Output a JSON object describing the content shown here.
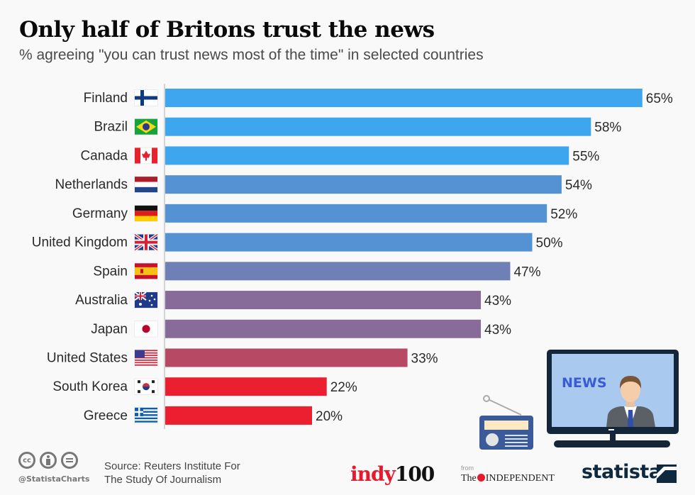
{
  "header": {
    "title": "Only half of Britons trust the news",
    "subtitle": "% agreeing \"you can trust news most of the time\" in selected countries"
  },
  "chart_data": {
    "type": "bar",
    "orientation": "horizontal",
    "title": "Only half of Britons trust the news",
    "subtitle": "% agreeing \"you can trust news most of the time\" in selected countries",
    "xlabel": "",
    "ylabel": "",
    "unit": "%",
    "xlim": [
      0,
      65
    ],
    "grid": false,
    "categories": [
      "Finland",
      "Brazil",
      "Canada",
      "Netherlands",
      "Germany",
      "United Kingdom",
      "Spain",
      "Australia",
      "Japan",
      "United States",
      "South Korea",
      "Greece"
    ],
    "values": [
      65,
      58,
      55,
      54,
      52,
      50,
      47,
      43,
      43,
      33,
      22,
      20
    ],
    "labels": [
      "65%",
      "58%",
      "55%",
      "54%",
      "52%",
      "50%",
      "47%",
      "43%",
      "43%",
      "33%",
      "22%",
      "20%"
    ],
    "colors": [
      "#3ea6ee",
      "#3ea6ee",
      "#3ea6ee",
      "#5592d4",
      "#5592d4",
      "#5592d4",
      "#6e80b6",
      "#876c9a",
      "#876c9a",
      "#b84965",
      "#ec1f30",
      "#ec1f30"
    ],
    "flags": [
      "finland-flag-icon",
      "brazil-flag-icon",
      "canada-flag-icon",
      "netherlands-flag-icon",
      "germany-flag-icon",
      "uk-flag-icon",
      "spain-flag-icon",
      "australia-flag-icon",
      "japan-flag-icon",
      "usa-flag-icon",
      "south-korea-flag-icon",
      "greece-flag-icon"
    ]
  },
  "illustration": {
    "tv_screen_text": "NEWS",
    "icons": [
      "radio-icon",
      "tv-icon",
      "news-anchor-icon"
    ]
  },
  "footer": {
    "source_line1": "Source: Reuters Institute For",
    "source_line2": "The Study Of Journalism",
    "handle": "@StatistaCharts",
    "cc_icons": [
      "cc-icon",
      "by-icon",
      "nd-icon"
    ],
    "cc_label": "cc",
    "brand_indy_a": "indy",
    "brand_indy_b": "100",
    "brand_from": "from",
    "brand_independent_a": "The",
    "brand_independent_b": "INDEPENDENT",
    "brand_statista": "statista"
  }
}
